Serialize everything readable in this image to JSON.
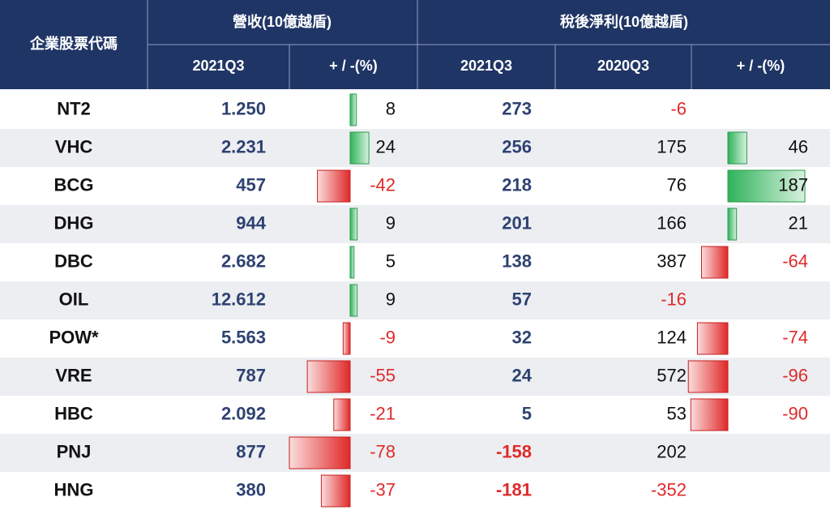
{
  "header": {
    "ticker": "企業股票代碼",
    "revenue": "營收(10億越盾)",
    "profit": "稅後淨利(10億越盾)",
    "columns": [
      "2021Q3",
      "+ / -(%)",
      "2021Q3",
      "2020Q3",
      "+ / -(%)"
    ]
  },
  "table": {
    "rows": [
      [
        "NT2",
        "1.250",
        8,
        273,
        -6,
        null
      ],
      [
        "VHC",
        "2.231",
        24,
        256,
        175,
        46
      ],
      [
        "BCG",
        "457",
        -42,
        218,
        76,
        187
      ],
      [
        "DHG",
        "944",
        9,
        201,
        166,
        21
      ],
      [
        "DBC",
        "2.682",
        5,
        138,
        387,
        -64
      ],
      [
        "OIL",
        "12.612",
        9,
        57,
        -16,
        null
      ],
      [
        "POW*",
        "5.563",
        -9,
        32,
        124,
        -74
      ],
      [
        "VRE",
        "787",
        -55,
        24,
        572,
        -96
      ],
      [
        "HBC",
        "2.092",
        -21,
        5,
        53,
        -90
      ],
      [
        "PNJ",
        "877",
        -78,
        -158,
        202,
        null
      ],
      [
        "HNG",
        "380",
        -37,
        -181,
        -352,
        null
      ]
    ]
  }
}
